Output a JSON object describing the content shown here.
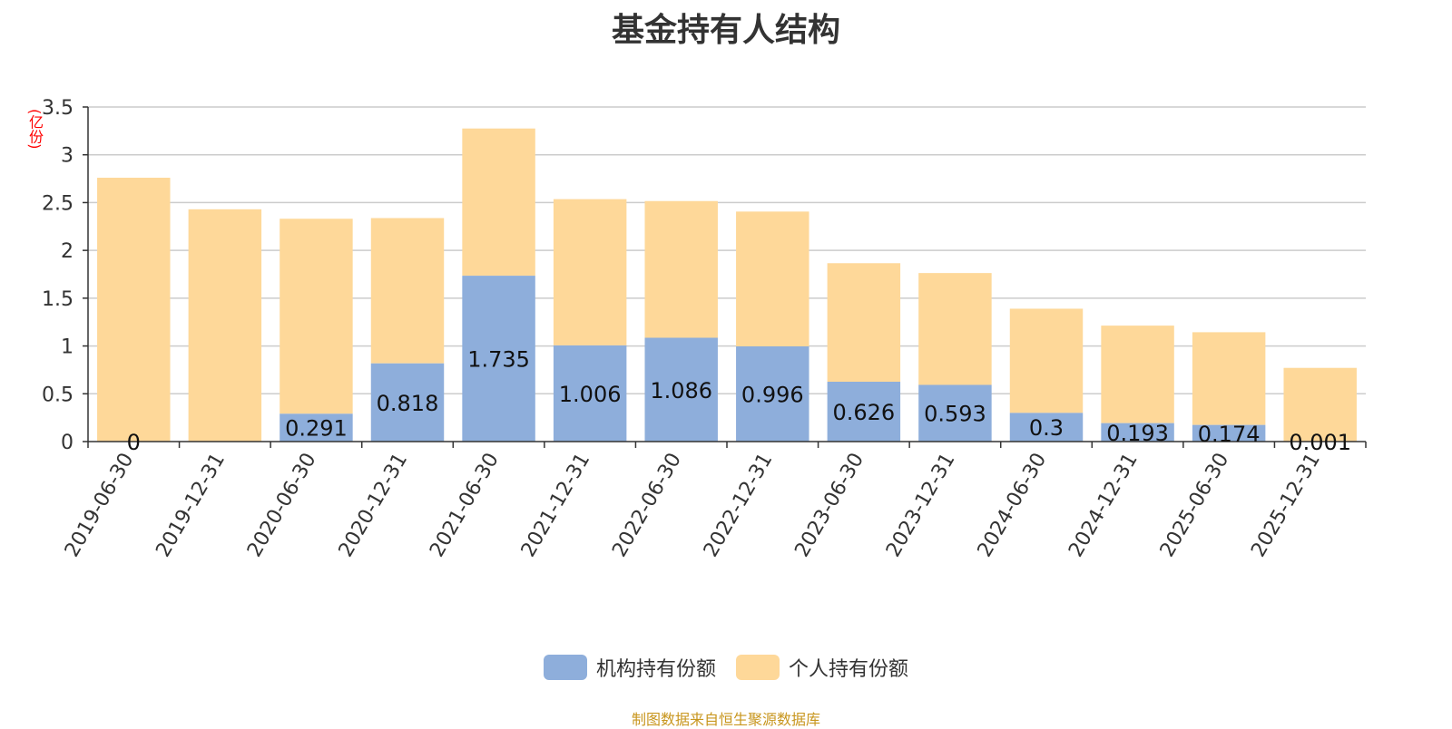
{
  "chart_data": {
    "type": "bar",
    "stacked": true,
    "title": "基金持有人结构",
    "unit_label": "(亿份)",
    "categories": [
      "2019-06-30",
      "2019-12-31",
      "2020-06-30",
      "2020-12-31",
      "2021-06-30",
      "2021-12-31",
      "2022-06-30",
      "2022-12-31",
      "2023-06-30",
      "2023-12-31",
      "2024-06-30",
      "2024-12-31",
      "2025-06-30",
      "2025-12-31"
    ],
    "series": [
      {
        "name": "机构持有份额",
        "color": "#8eaedb",
        "values": [
          0,
          0,
          0.291,
          0.818,
          1.735,
          1.006,
          1.086,
          0.996,
          0.626,
          0.593,
          0.3,
          0.193,
          0.174,
          0.001
        ],
        "labels": [
          "0",
          "",
          "0.291",
          "0.818",
          "1.735",
          "1.006",
          "1.086",
          "0.996",
          "0.626",
          "0.593",
          "0.3",
          "0.193",
          "0.174",
          "0.001"
        ]
      },
      {
        "name": "个人持有份额",
        "color": "#fed899",
        "values": [
          2.76,
          2.43,
          2.04,
          1.52,
          1.54,
          1.53,
          1.43,
          1.41,
          1.24,
          1.17,
          1.09,
          1.02,
          0.97,
          0.77
        ]
      }
    ],
    "ylim": [
      0,
      3.5
    ],
    "yticks": [
      "0",
      "0.5",
      "1",
      "1.5",
      "2",
      "2.5",
      "3",
      "3.5"
    ],
    "grid": true,
    "legend_position": "bottom"
  },
  "source_note": "制图数据来自恒生聚源数据库"
}
